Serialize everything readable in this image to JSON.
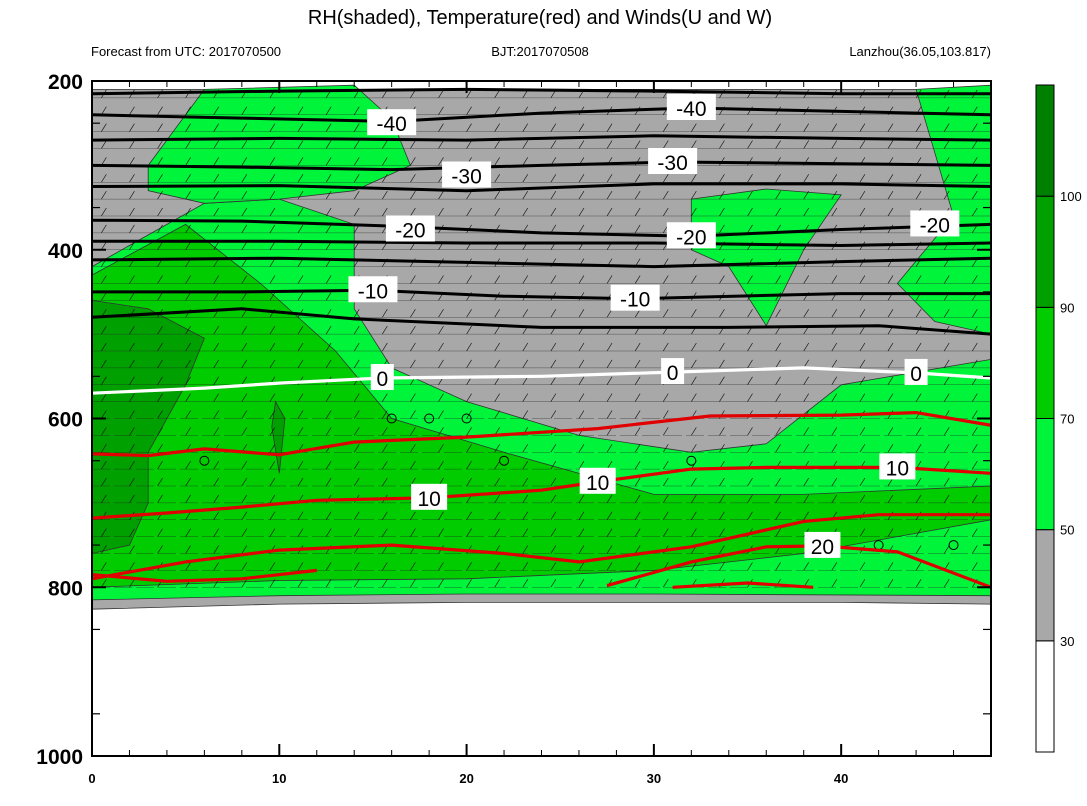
{
  "chart_data": {
    "type": "contour",
    "title": "RH(shaded), Temperature(red) and Winds(U and W)",
    "subtitle_left": "Forecast from UTC: 2017070500",
    "subtitle_center": "BJT:2017070508",
    "subtitle_right": "Lanzhou(36.05,103.817)",
    "xlabel": "",
    "ylabel": "",
    "xlim": [
      0,
      48
    ],
    "ylim": [
      1000,
      200
    ],
    "x_ticks": [
      0,
      10,
      20,
      30,
      40
    ],
    "y_ticks": [
      200,
      400,
      600,
      800,
      1000
    ],
    "colorbar": {
      "levels": [
        30,
        50,
        70,
        90,
        100
      ],
      "colors": [
        "#ffffff",
        "#a8a8a8",
        "#00f53a",
        "#00cc00",
        "#00a000",
        "#008000"
      ]
    },
    "temperature_contours": [
      {
        "value": -40,
        "color": "#000000",
        "labels_at": [
          [
            16,
            250
          ],
          [
            32,
            232
          ]
        ],
        "points": [
          [
            0,
            240
          ],
          [
            8,
            244
          ],
          [
            16,
            248
          ],
          [
            24,
            238
          ],
          [
            32,
            232
          ],
          [
            40,
            236
          ],
          [
            48,
            240
          ]
        ]
      },
      {
        "value": -40,
        "color": "#000000",
        "labels_at": [],
        "points": [
          [
            0,
            215
          ],
          [
            10,
            212
          ],
          [
            20,
            210
          ],
          [
            30,
            212
          ],
          [
            40,
            215
          ],
          [
            48,
            215
          ]
        ]
      },
      {
        "value": -40,
        "color": "#000000",
        "labels_at": [],
        "points": [
          [
            0,
            270
          ],
          [
            10,
            268
          ],
          [
            20,
            270
          ],
          [
            30,
            265
          ],
          [
            40,
            268
          ],
          [
            48,
            270
          ]
        ]
      },
      {
        "value": -30,
        "color": "#000000",
        "labels_at": [
          [
            20,
            312
          ],
          [
            31,
            296
          ]
        ],
        "points": [
          [
            0,
            300
          ],
          [
            8,
            302
          ],
          [
            16,
            305
          ],
          [
            24,
            300
          ],
          [
            31,
            296
          ],
          [
            40,
            298
          ],
          [
            48,
            300
          ]
        ]
      },
      {
        "value": -30,
        "color": "#000000",
        "labels_at": [],
        "points": [
          [
            0,
            325
          ],
          [
            10,
            324
          ],
          [
            20,
            330
          ],
          [
            30,
            322
          ],
          [
            40,
            322
          ],
          [
            48,
            325
          ]
        ]
      },
      {
        "value": -20,
        "color": "#000000",
        "labels_at": [
          [
            17,
            376
          ],
          [
            32,
            384
          ],
          [
            45,
            370
          ]
        ],
        "points": [
          [
            0,
            365
          ],
          [
            8,
            366
          ],
          [
            16,
            372
          ],
          [
            24,
            380
          ],
          [
            32,
            384
          ],
          [
            40,
            376
          ],
          [
            48,
            370
          ]
        ]
      },
      {
        "value": -20,
        "color": "#000000",
        "labels_at": [],
        "points": [
          [
            0,
            390
          ],
          [
            10,
            390
          ],
          [
            20,
            392
          ],
          [
            30,
            392
          ],
          [
            40,
            395
          ],
          [
            48,
            392
          ]
        ]
      },
      {
        "value": -20,
        "color": "#000000",
        "labels_at": [],
        "points": [
          [
            0,
            412
          ],
          [
            10,
            410
          ],
          [
            20,
            415
          ],
          [
            30,
            420
          ],
          [
            40,
            414
          ],
          [
            48,
            410
          ]
        ]
      },
      {
        "value": -10,
        "color": "#000000",
        "labels_at": [
          [
            15,
            448
          ],
          [
            29,
            458
          ]
        ],
        "points": [
          [
            0,
            450
          ],
          [
            8,
            450
          ],
          [
            15,
            448
          ],
          [
            22,
            455
          ],
          [
            29,
            458
          ],
          [
            40,
            452
          ],
          [
            48,
            452
          ]
        ]
      },
      {
        "value": -10,
        "color": "#000000",
        "labels_at": [],
        "points": [
          [
            0,
            480
          ],
          [
            8,
            470
          ],
          [
            14,
            482
          ],
          [
            24,
            492
          ],
          [
            34,
            492
          ],
          [
            42,
            490
          ],
          [
            48,
            500
          ]
        ]
      },
      {
        "value": 0,
        "color": "#ffffff",
        "labels_at": [
          [
            15.5,
            552
          ],
          [
            31,
            545
          ],
          [
            44,
            546
          ]
        ],
        "points": [
          [
            0,
            570
          ],
          [
            6,
            564
          ],
          [
            10,
            558
          ],
          [
            15.5,
            552
          ],
          [
            24,
            550
          ],
          [
            31,
            545
          ],
          [
            38,
            540
          ],
          [
            44,
            546
          ],
          [
            48,
            552
          ]
        ]
      },
      {
        "value": 10,
        "color": "#e00000",
        "labels_at": [
          [
            18,
            694
          ],
          [
            27,
            675
          ],
          [
            43,
            658
          ]
        ],
        "points": [
          [
            0,
            642
          ],
          [
            3,
            644
          ],
          [
            6,
            636
          ],
          [
            10,
            643
          ],
          [
            14,
            628
          ],
          [
            20,
            622
          ],
          [
            27,
            612
          ],
          [
            33,
            597
          ],
          [
            40,
            596
          ],
          [
            44,
            593
          ],
          [
            48,
            608
          ]
        ]
      },
      {
        "value": 10,
        "color": "#e00000",
        "labels_at": [],
        "points": [
          [
            0,
            718
          ],
          [
            4,
            712
          ],
          [
            8,
            705
          ],
          [
            12,
            697
          ],
          [
            18,
            694
          ],
          [
            24,
            685
          ],
          [
            27,
            675
          ],
          [
            32,
            660
          ],
          [
            36,
            658
          ],
          [
            43,
            658
          ],
          [
            48,
            665
          ]
        ]
      },
      {
        "value": 10,
        "color": "#e00000",
        "labels_at": [],
        "points": [
          [
            0,
            790
          ],
          [
            5,
            770
          ],
          [
            10,
            756
          ],
          [
            16,
            750
          ],
          [
            22,
            760
          ],
          [
            26,
            770
          ],
          [
            32,
            752
          ],
          [
            38,
            722
          ],
          [
            42,
            714
          ],
          [
            48,
            714
          ]
        ]
      },
      {
        "value": 20,
        "color": "#e00000",
        "labels_at": [
          [
            39,
            751
          ]
        ],
        "points": [
          [
            27.5,
            798
          ],
          [
            32,
            770
          ],
          [
            36,
            752
          ],
          [
            39,
            751
          ],
          [
            43,
            758
          ],
          [
            48,
            800
          ]
        ]
      },
      {
        "value": 20,
        "color": "#e00000",
        "labels_at": [],
        "points": [
          [
            31,
            800
          ],
          [
            35,
            795
          ],
          [
            38.5,
            800
          ]
        ]
      },
      {
        "value": 20,
        "color": "#e00000",
        "labels_at": [],
        "points": [
          [
            0,
            785
          ],
          [
            4,
            793
          ],
          [
            8,
            790
          ],
          [
            12,
            780
          ]
        ]
      }
    ],
    "rh_regions": [
      {
        "level": 30,
        "points": [
          [
            0,
            210
          ],
          [
            48,
            210
          ],
          [
            48,
            820
          ],
          [
            40,
            818
          ],
          [
            30,
            818
          ],
          [
            20,
            818
          ],
          [
            10,
            820
          ],
          [
            0,
            826
          ]
        ]
      },
      {
        "level": 50,
        "points": [
          [
            0,
            420
          ],
          [
            6,
            345
          ],
          [
            10,
            340
          ],
          [
            14,
            370
          ],
          [
            14,
            470
          ],
          [
            16,
            540
          ],
          [
            20,
            580
          ],
          [
            26,
            620
          ],
          [
            32,
            640
          ],
          [
            36,
            630
          ],
          [
            40,
            560
          ],
          [
            48,
            530
          ],
          [
            48,
            810
          ],
          [
            30,
            808
          ],
          [
            20,
            808
          ],
          [
            10,
            810
          ],
          [
            0,
            815
          ]
        ]
      },
      {
        "level": 50,
        "points": [
          [
            32,
            340
          ],
          [
            36,
            328
          ],
          [
            40,
            335
          ],
          [
            38,
            400
          ],
          [
            36,
            490
          ],
          [
            34,
            420
          ],
          [
            32,
            400
          ]
        ]
      },
      {
        "level": 50,
        "points": [
          [
            3,
            300
          ],
          [
            6,
            210
          ],
          [
            14,
            205
          ],
          [
            16,
            245
          ],
          [
            17,
            300
          ],
          [
            14,
            330
          ],
          [
            10,
            340
          ],
          [
            6,
            345
          ],
          [
            3,
            330
          ]
        ]
      },
      {
        "level": 50,
        "points": [
          [
            44,
            210
          ],
          [
            48,
            205
          ],
          [
            48,
            500
          ],
          [
            45,
            485
          ],
          [
            43,
            440
          ],
          [
            46,
            360
          ]
        ]
      },
      {
        "level": 70,
        "points": [
          [
            0,
            430
          ],
          [
            5,
            370
          ],
          [
            9,
            440
          ],
          [
            13,
            520
          ],
          [
            16,
            600
          ],
          [
            22,
            640
          ],
          [
            30,
            690
          ],
          [
            38,
            690
          ],
          [
            48,
            680
          ],
          [
            48,
            720
          ],
          [
            38,
            760
          ],
          [
            30,
            780
          ],
          [
            20,
            790
          ],
          [
            10,
            792
          ],
          [
            0,
            800
          ]
        ]
      },
      {
        "level": 90,
        "points": [
          [
            0,
            460
          ],
          [
            3,
            470
          ],
          [
            6,
            505
          ],
          [
            5,
            560
          ],
          [
            3,
            640
          ],
          [
            3,
            700
          ],
          [
            2,
            750
          ],
          [
            0,
            760
          ]
        ]
      },
      {
        "level": 90,
        "points": [
          [
            9.8,
            580
          ],
          [
            10.3,
            600
          ],
          [
            10,
            665
          ],
          [
            9.6,
            610
          ]
        ]
      }
    ],
    "wind_rows": [
      220,
      240,
      260,
      280,
      300,
      320,
      340,
      360,
      380,
      400,
      420,
      440,
      460,
      480,
      500,
      520,
      540,
      560,
      580,
      600,
      620,
      640,
      660,
      680,
      700,
      720,
      740,
      760,
      780,
      800
    ],
    "calm_markers": [
      [
        6,
        650
      ],
      [
        16,
        600
      ],
      [
        18,
        600
      ],
      [
        20,
        600
      ],
      [
        22,
        650
      ],
      [
        32,
        650
      ],
      [
        42,
        750
      ],
      [
        46,
        750
      ]
    ]
  }
}
